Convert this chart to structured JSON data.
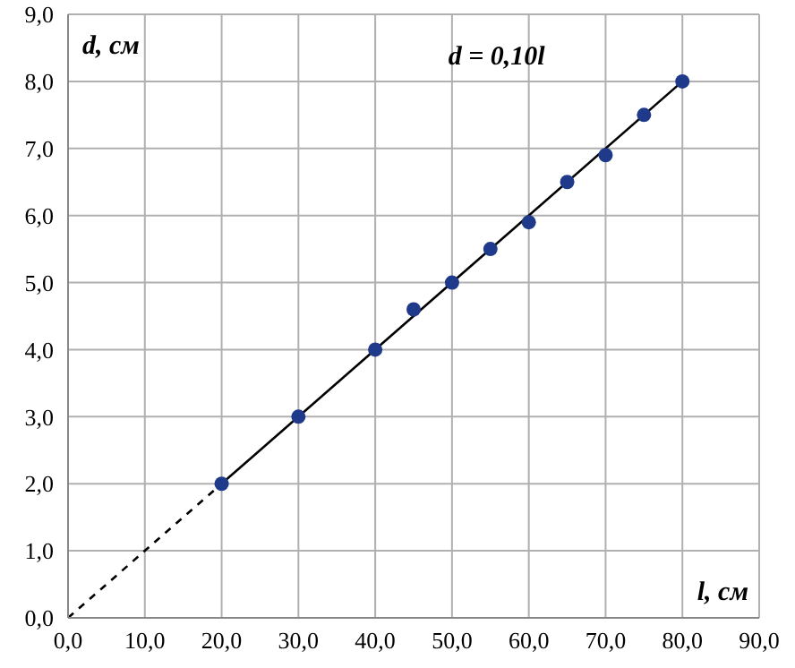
{
  "chart_data": {
    "type": "scatter",
    "xlabel": "l, см",
    "ylabel": "d, см",
    "annotations": [
      "d = 0,10l"
    ],
    "series": [
      {
        "color": "#1f3a8a",
        "marker": "circle",
        "x": [
          20,
          30,
          40,
          45,
          50,
          55,
          60,
          65,
          70,
          75,
          80
        ],
        "values": [
          2.0,
          3.0,
          4.0,
          4.6,
          5.0,
          5.5,
          5.9,
          6.5,
          6.9,
          7.5,
          8.0
        ]
      },
      {
        "type": "line",
        "color": "#000000",
        "line_style": "solid",
        "x": [
          20,
          80
        ],
        "values": [
          2.0,
          8.0
        ]
      },
      {
        "type": "line",
        "color": "#000000",
        "line_style": "dashed",
        "x": [
          0,
          20
        ],
        "values": [
          0.0,
          2.0
        ]
      }
    ],
    "xlim": [
      0,
      90
    ],
    "ylim": [
      0,
      9
    ],
    "xticks": [
      {
        "value": 0,
        "label": "0,0"
      },
      {
        "value": 10,
        "label": "10,0"
      },
      {
        "value": 20,
        "label": "20,0"
      },
      {
        "value": 30,
        "label": "30,0"
      },
      {
        "value": 40,
        "label": "40,0"
      },
      {
        "value": 50,
        "label": "50,0"
      },
      {
        "value": 60,
        "label": "60,0"
      },
      {
        "value": 70,
        "label": "70,0"
      },
      {
        "value": 80,
        "label": "80,0"
      },
      {
        "value": 90,
        "label": "90,0"
      }
    ],
    "yticks": [
      {
        "value": 0,
        "label": "0,0"
      },
      {
        "value": 1,
        "label": "1,0"
      },
      {
        "value": 2,
        "label": "2,0"
      },
      {
        "value": 3,
        "label": "3,0"
      },
      {
        "value": 4,
        "label": "4,0"
      },
      {
        "value": 5,
        "label": "5,0"
      },
      {
        "value": 6,
        "label": "6,0"
      },
      {
        "value": 7,
        "label": "7,0"
      },
      {
        "value": 8,
        "label": "8,0"
      },
      {
        "value": 9,
        "label": "9,0"
      }
    ],
    "grid": true,
    "legend": false
  }
}
